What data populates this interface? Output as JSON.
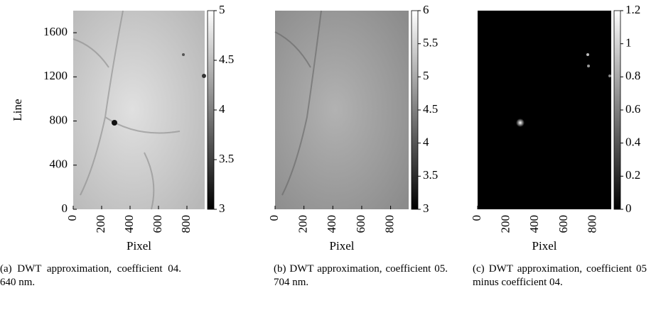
{
  "chart_data": [
    {
      "type": "image",
      "ylabel": "Line",
      "xlabel": "Pixel",
      "xlim": [
        0,
        925
      ],
      "ylim": [
        0,
        1800
      ],
      "xticks": [
        0,
        200,
        400,
        600,
        800
      ],
      "yticks": [
        0,
        400,
        800,
        1200,
        1600
      ],
      "clim": [
        3,
        5
      ],
      "cticks": [
        3,
        3.5,
        4,
        4.5,
        5
      ],
      "caption": "(a) DWT approximation, coefficient 04. 640 nm."
    },
    {
      "type": "image",
      "xlabel": "Pixel",
      "xlim": [
        0,
        925
      ],
      "ylim": [
        0,
        1800
      ],
      "xticks": [
        0,
        200,
        400,
        600,
        800
      ],
      "clim": [
        3,
        6
      ],
      "cticks": [
        3,
        3.5,
        4,
        4.5,
        5,
        5.5,
        6
      ],
      "caption": "(b) DWT approximation, coefficient 05. 704 nm."
    },
    {
      "type": "image",
      "xlabel": "Pixel",
      "xlim": [
        0,
        925
      ],
      "ylim": [
        0,
        1800
      ],
      "xticks": [
        0,
        200,
        400,
        600,
        800
      ],
      "clim": [
        0,
        1.2
      ],
      "cticks": [
        0,
        0.2,
        0.4,
        0.6,
        0.8,
        1,
        1.2
      ],
      "caption": "(c) DWT approximation, coefficient 05 minus coefficient 04."
    }
  ]
}
